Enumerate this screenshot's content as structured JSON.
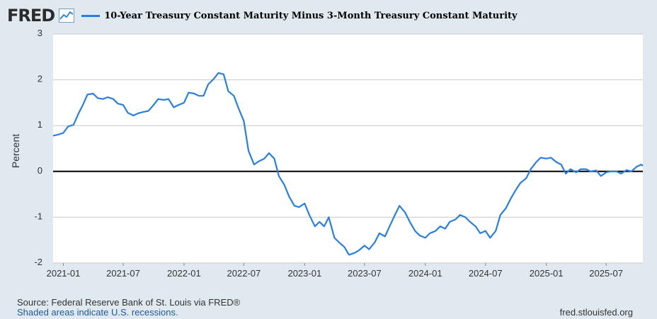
{
  "header": {
    "logo_text": "FRED",
    "logo_icon": "chart-line-icon",
    "legend_label": "10-Year Treasury Constant Maturity Minus 3-Month Treasury Constant Maturity"
  },
  "footer": {
    "source": "Source: Federal Reserve Bank of St. Louis via FRED®",
    "recessions": "Shaded areas indicate U.S. recessions.",
    "site": "fred.stlouisfed.org"
  },
  "colors": {
    "line": "#2a7fde",
    "background": "#e1e9f0",
    "plot_bg": "#ffffff",
    "zero_line": "#000000"
  },
  "chart_data": {
    "type": "line",
    "title": "10-Year Treasury Constant Maturity Minus 3-Month Treasury Constant Maturity",
    "ylabel": "Percent",
    "xlabel": "",
    "ylim": [
      -2,
      3
    ],
    "yticks": [
      -2,
      -1,
      0,
      1,
      2,
      3
    ],
    "xlim": [
      "2020-12-01",
      "2025-10-20"
    ],
    "xticks": [
      "2021-01",
      "2021-07",
      "2022-01",
      "2022-07",
      "2023-01",
      "2023-07",
      "2024-01",
      "2024-07",
      "2025-01",
      "2025-07"
    ],
    "grid": true,
    "legend": "top-left",
    "series": [
      {
        "name": "10-Year Treasury Constant Maturity Minus 3-Month Treasury Constant Maturity",
        "points": [
          [
            "2020-12-01",
            0.78
          ],
          [
            "2020-12-15",
            0.8
          ],
          [
            "2021-01-01",
            0.84
          ],
          [
            "2021-01-15",
            0.98
          ],
          [
            "2021-02-01",
            1.02
          ],
          [
            "2021-02-15",
            1.25
          ],
          [
            "2021-03-01",
            1.45
          ],
          [
            "2021-03-15",
            1.68
          ],
          [
            "2021-04-01",
            1.7
          ],
          [
            "2021-04-15",
            1.6
          ],
          [
            "2021-05-01",
            1.58
          ],
          [
            "2021-05-15",
            1.62
          ],
          [
            "2021-06-01",
            1.58
          ],
          [
            "2021-06-15",
            1.48
          ],
          [
            "2021-07-01",
            1.45
          ],
          [
            "2021-07-15",
            1.28
          ],
          [
            "2021-08-01",
            1.22
          ],
          [
            "2021-08-15",
            1.27
          ],
          [
            "2021-09-01",
            1.3
          ],
          [
            "2021-09-15",
            1.32
          ],
          [
            "2021-10-01",
            1.45
          ],
          [
            "2021-10-15",
            1.58
          ],
          [
            "2021-11-01",
            1.56
          ],
          [
            "2021-11-15",
            1.58
          ],
          [
            "2021-12-01",
            1.4
          ],
          [
            "2021-12-15",
            1.45
          ],
          [
            "2022-01-01",
            1.5
          ],
          [
            "2022-01-15",
            1.72
          ],
          [
            "2022-02-01",
            1.7
          ],
          [
            "2022-02-15",
            1.65
          ],
          [
            "2022-03-01",
            1.65
          ],
          [
            "2022-03-15",
            1.9
          ],
          [
            "2022-04-01",
            2.02
          ],
          [
            "2022-04-15",
            2.15
          ],
          [
            "2022-05-01",
            2.12
          ],
          [
            "2022-05-15",
            1.75
          ],
          [
            "2022-06-01",
            1.65
          ],
          [
            "2022-06-15",
            1.38
          ],
          [
            "2022-07-01",
            1.1
          ],
          [
            "2022-07-15",
            0.45
          ],
          [
            "2022-08-01",
            0.15
          ],
          [
            "2022-08-15",
            0.22
          ],
          [
            "2022-09-01",
            0.28
          ],
          [
            "2022-09-15",
            0.4
          ],
          [
            "2022-10-01",
            0.28
          ],
          [
            "2022-10-15",
            -0.1
          ],
          [
            "2022-11-01",
            -0.3
          ],
          [
            "2022-11-15",
            -0.55
          ],
          [
            "2022-12-01",
            -0.75
          ],
          [
            "2022-12-15",
            -0.78
          ],
          [
            "2023-01-01",
            -0.7
          ],
          [
            "2023-01-15",
            -0.95
          ],
          [
            "2023-02-01",
            -1.2
          ],
          [
            "2023-02-15",
            -1.1
          ],
          [
            "2023-03-01",
            -1.2
          ],
          [
            "2023-03-15",
            -1.0
          ],
          [
            "2023-04-01",
            -1.45
          ],
          [
            "2023-04-15",
            -1.55
          ],
          [
            "2023-05-01",
            -1.65
          ],
          [
            "2023-05-15",
            -1.82
          ],
          [
            "2023-06-01",
            -1.78
          ],
          [
            "2023-06-15",
            -1.72
          ],
          [
            "2023-07-01",
            -1.62
          ],
          [
            "2023-07-15",
            -1.7
          ],
          [
            "2023-08-01",
            -1.55
          ],
          [
            "2023-08-15",
            -1.35
          ],
          [
            "2023-09-01",
            -1.42
          ],
          [
            "2023-09-15",
            -1.2
          ],
          [
            "2023-10-01",
            -0.95
          ],
          [
            "2023-10-15",
            -0.75
          ],
          [
            "2023-11-01",
            -0.9
          ],
          [
            "2023-11-15",
            -1.1
          ],
          [
            "2023-12-01",
            -1.3
          ],
          [
            "2023-12-15",
            -1.4
          ],
          [
            "2024-01-01",
            -1.45
          ],
          [
            "2024-01-15",
            -1.35
          ],
          [
            "2024-02-01",
            -1.3
          ],
          [
            "2024-02-15",
            -1.2
          ],
          [
            "2024-03-01",
            -1.25
          ],
          [
            "2024-03-15",
            -1.1
          ],
          [
            "2024-04-01",
            -1.05
          ],
          [
            "2024-04-15",
            -0.95
          ],
          [
            "2024-05-01",
            -1.0
          ],
          [
            "2024-05-15",
            -1.1
          ],
          [
            "2024-06-01",
            -1.2
          ],
          [
            "2024-06-15",
            -1.35
          ],
          [
            "2024-07-01",
            -1.3
          ],
          [
            "2024-07-15",
            -1.45
          ],
          [
            "2024-08-01",
            -1.3
          ],
          [
            "2024-08-15",
            -0.95
          ],
          [
            "2024-09-01",
            -0.8
          ],
          [
            "2024-09-15",
            -0.6
          ],
          [
            "2024-10-01",
            -0.4
          ],
          [
            "2024-10-15",
            -0.25
          ],
          [
            "2024-11-01",
            -0.15
          ],
          [
            "2024-11-15",
            0.05
          ],
          [
            "2024-12-01",
            0.2
          ],
          [
            "2024-12-15",
            0.3
          ],
          [
            "2025-01-01",
            0.28
          ],
          [
            "2025-01-15",
            0.3
          ],
          [
            "2025-02-01",
            0.2
          ],
          [
            "2025-02-15",
            0.15
          ],
          [
            "2025-03-01",
            -0.05
          ],
          [
            "2025-03-15",
            0.05
          ],
          [
            "2025-04-01",
            -0.02
          ],
          [
            "2025-04-15",
            0.05
          ],
          [
            "2025-05-01",
            0.05
          ],
          [
            "2025-05-15",
            0.0
          ],
          [
            "2025-06-01",
            0.02
          ],
          [
            "2025-06-15",
            -0.1
          ],
          [
            "2025-07-01",
            -0.02
          ],
          [
            "2025-07-15",
            0.0
          ],
          [
            "2025-08-01",
            0.0
          ],
          [
            "2025-08-15",
            -0.05
          ],
          [
            "2025-09-01",
            0.03
          ],
          [
            "2025-09-15",
            0.0
          ],
          [
            "2025-10-01",
            0.1
          ],
          [
            "2025-10-15",
            0.15
          ],
          [
            "2025-10-20",
            0.12
          ]
        ]
      }
    ]
  }
}
